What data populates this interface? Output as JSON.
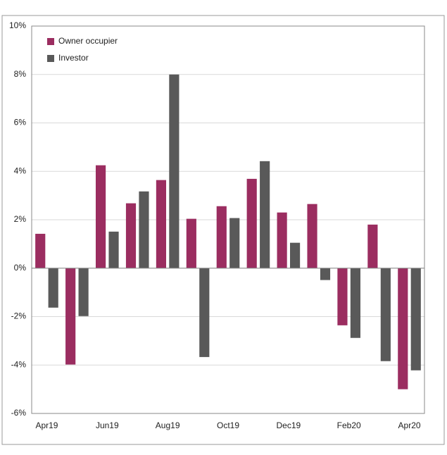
{
  "chart_data": {
    "type": "bar",
    "categories": [
      "Apr19",
      null,
      "Jun19",
      null,
      "Aug19",
      null,
      "Oct19",
      null,
      "Dec19",
      null,
      "Feb20",
      null,
      "Apr20"
    ],
    "series": [
      {
        "name": "Owner occupier",
        "color": "#9b2d60",
        "values": [
          1.42,
          -3.98,
          4.25,
          2.68,
          3.64,
          2.04,
          2.56,
          3.69,
          2.3,
          2.65,
          -2.36,
          1.8,
          -5.0
        ]
      },
      {
        "name": "Investor",
        "color": "#595959",
        "values": [
          -1.63,
          -1.98,
          1.51,
          3.17,
          8.0,
          -3.67,
          2.07,
          4.42,
          1.05,
          -0.49,
          -2.88,
          -3.84,
          -4.22
        ]
      }
    ],
    "ylim": [
      -6,
      10
    ],
    "yticks": [
      {
        "value": -6,
        "label": "-6%"
      },
      {
        "value": -4,
        "label": "-4%"
      },
      {
        "value": -2,
        "label": "-2%"
      },
      {
        "value": 0,
        "label": "0%"
      },
      {
        "value": 2,
        "label": "2%"
      },
      {
        "value": 4,
        "label": "4%"
      },
      {
        "value": 6,
        "label": "6%"
      },
      {
        "value": 8,
        "label": "8%"
      },
      {
        "value": 10,
        "label": "10%"
      }
    ],
    "grid": true,
    "legend": "top-left"
  }
}
